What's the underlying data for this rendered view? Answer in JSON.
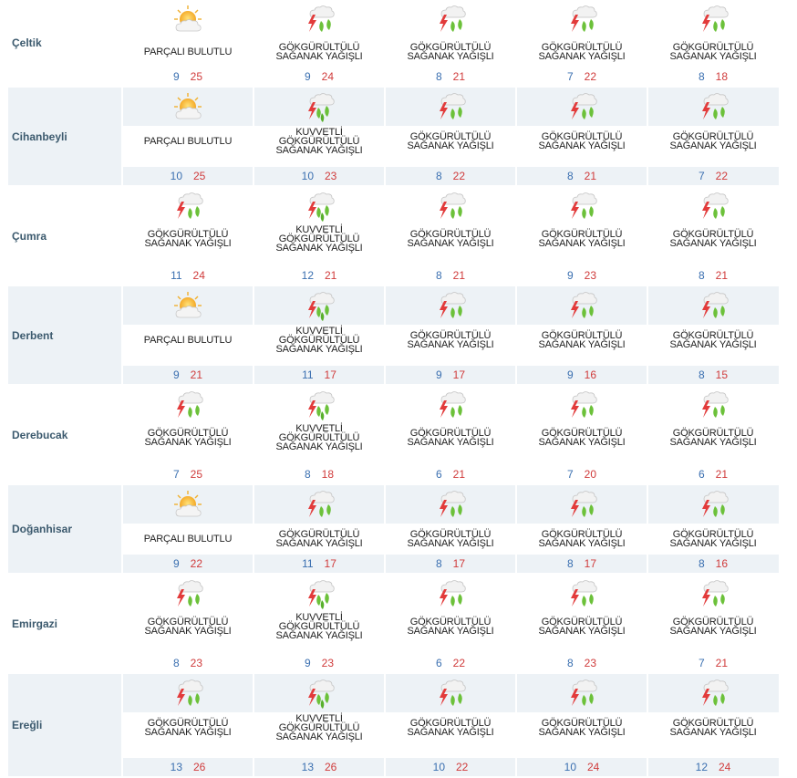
{
  "days_columns": 5,
  "colors": {
    "band": "#edf2f6",
    "city": "#3c5a6e",
    "min_temp": "#3a6fb0",
    "max_temp": "#d03b3b"
  },
  "rows": [
    {
      "city": "Çeltik",
      "banded": false,
      "cells": [
        {
          "icon": "partly-cloudy-icon",
          "desc": [
            "PARÇALI BULUTLU"
          ],
          "min": "9",
          "max": "25"
        },
        {
          "icon": "thunder-shower-icon",
          "desc": [
            "GÖKGÜRÜLTÜLÜ",
            "SAĞANAK YAĞIŞLI"
          ],
          "min": "9",
          "max": "24"
        },
        {
          "icon": "thunder-shower-icon",
          "desc": [
            "GÖKGÜRÜLTÜLÜ",
            "SAĞANAK YAĞIŞLI"
          ],
          "min": "8",
          "max": "21"
        },
        {
          "icon": "thunder-shower-icon",
          "desc": [
            "GÖKGÜRÜLTÜLÜ",
            "SAĞANAK YAĞIŞLI"
          ],
          "min": "7",
          "max": "22"
        },
        {
          "icon": "thunder-shower-icon",
          "desc": [
            "GÖKGÜRÜLTÜLÜ",
            "SAĞANAK YAĞIŞLI"
          ],
          "min": "8",
          "max": "18"
        }
      ]
    },
    {
      "city": "Cihanbeyli",
      "banded": true,
      "cells": [
        {
          "icon": "partly-cloudy-icon",
          "desc": [
            "PARÇALI BULUTLU"
          ],
          "min": "10",
          "max": "25"
        },
        {
          "icon": "heavy-thunder-shower-icon",
          "desc": [
            "KUVVETLİ",
            "GÖKGÜRÜLTÜLÜ",
            "SAĞANAK YAĞIŞLI"
          ],
          "min": "10",
          "max": "23"
        },
        {
          "icon": "thunder-shower-icon",
          "desc": [
            "GÖKGÜRÜLTÜLÜ",
            "SAĞANAK YAĞIŞLI"
          ],
          "min": "8",
          "max": "22"
        },
        {
          "icon": "thunder-shower-icon",
          "desc": [
            "GÖKGÜRÜLTÜLÜ",
            "SAĞANAK YAĞIŞLI"
          ],
          "min": "8",
          "max": "21"
        },
        {
          "icon": "thunder-shower-icon",
          "desc": [
            "GÖKGÜRÜLTÜLÜ",
            "SAĞANAK YAĞIŞLI"
          ],
          "min": "7",
          "max": "22"
        }
      ]
    },
    {
      "city": "Çumra",
      "banded": false,
      "cells": [
        {
          "icon": "thunder-shower-icon",
          "desc": [
            "GÖKGÜRÜLTÜLÜ",
            "SAĞANAK YAĞIŞLI"
          ],
          "min": "11",
          "max": "24"
        },
        {
          "icon": "heavy-thunder-shower-icon",
          "desc": [
            "KUVVETLİ",
            "GÖKGÜRÜLTÜLÜ",
            "SAĞANAK YAĞIŞLI"
          ],
          "min": "12",
          "max": "21"
        },
        {
          "icon": "thunder-shower-icon",
          "desc": [
            "GÖKGÜRÜLTÜLÜ",
            "SAĞANAK YAĞIŞLI"
          ],
          "min": "8",
          "max": "21"
        },
        {
          "icon": "thunder-shower-icon",
          "desc": [
            "GÖKGÜRÜLTÜLÜ",
            "SAĞANAK YAĞIŞLI"
          ],
          "min": "9",
          "max": "23"
        },
        {
          "icon": "thunder-shower-icon",
          "desc": [
            "GÖKGÜRÜLTÜLÜ",
            "SAĞANAK YAĞIŞLI"
          ],
          "min": "8",
          "max": "21"
        }
      ]
    },
    {
      "city": "Derbent",
      "banded": true,
      "cells": [
        {
          "icon": "partly-cloudy-icon",
          "desc": [
            "PARÇALI BULUTLU"
          ],
          "min": "9",
          "max": "21"
        },
        {
          "icon": "heavy-thunder-shower-icon",
          "desc": [
            "KUVVETLİ",
            "GÖKGÜRÜLTÜLÜ",
            "SAĞANAK YAĞIŞLI"
          ],
          "min": "11",
          "max": "17"
        },
        {
          "icon": "thunder-shower-icon",
          "desc": [
            "GÖKGÜRÜLTÜLÜ",
            "SAĞANAK YAĞIŞLI"
          ],
          "min": "9",
          "max": "17"
        },
        {
          "icon": "thunder-shower-icon",
          "desc": [
            "GÖKGÜRÜLTÜLÜ",
            "SAĞANAK YAĞIŞLI"
          ],
          "min": "9",
          "max": "16"
        },
        {
          "icon": "thunder-shower-icon",
          "desc": [
            "GÖKGÜRÜLTÜLÜ",
            "SAĞANAK YAĞIŞLI"
          ],
          "min": "8",
          "max": "15"
        }
      ]
    },
    {
      "city": "Derebucak",
      "banded": false,
      "cells": [
        {
          "icon": "thunder-shower-icon",
          "desc": [
            "GÖKGÜRÜLTÜLÜ",
            "SAĞANAK YAĞIŞLI"
          ],
          "min": "7",
          "max": "25"
        },
        {
          "icon": "heavy-thunder-shower-icon",
          "desc": [
            "KUVVETLİ",
            "GÖKGÜRÜLTÜLÜ",
            "SAĞANAK YAĞIŞLI"
          ],
          "min": "8",
          "max": "18"
        },
        {
          "icon": "thunder-shower-icon",
          "desc": [
            "GÖKGÜRÜLTÜLÜ",
            "SAĞANAK YAĞIŞLI"
          ],
          "min": "6",
          "max": "21"
        },
        {
          "icon": "thunder-shower-icon",
          "desc": [
            "GÖKGÜRÜLTÜLÜ",
            "SAĞANAK YAĞIŞLI"
          ],
          "min": "7",
          "max": "20"
        },
        {
          "icon": "thunder-shower-icon",
          "desc": [
            "GÖKGÜRÜLTÜLÜ",
            "SAĞANAK YAĞIŞLI"
          ],
          "min": "6",
          "max": "21"
        }
      ]
    },
    {
      "city": "Doğanhisar",
      "banded": true,
      "cells": [
        {
          "icon": "partly-cloudy-icon",
          "desc": [
            "PARÇALI BULUTLU"
          ],
          "min": "9",
          "max": "22"
        },
        {
          "icon": "thunder-shower-icon",
          "desc": [
            "GÖKGÜRÜLTÜLÜ",
            "SAĞANAK YAĞIŞLI"
          ],
          "min": "11",
          "max": "17"
        },
        {
          "icon": "thunder-shower-icon",
          "desc": [
            "GÖKGÜRÜLTÜLÜ",
            "SAĞANAK YAĞIŞLI"
          ],
          "min": "8",
          "max": "17"
        },
        {
          "icon": "thunder-shower-icon",
          "desc": [
            "GÖKGÜRÜLTÜLÜ",
            "SAĞANAK YAĞIŞLI"
          ],
          "min": "8",
          "max": "17"
        },
        {
          "icon": "thunder-shower-icon",
          "desc": [
            "GÖKGÜRÜLTÜLÜ",
            "SAĞANAK YAĞIŞLI"
          ],
          "min": "8",
          "max": "16"
        }
      ]
    },
    {
      "city": "Emirgazi",
      "banded": false,
      "cells": [
        {
          "icon": "thunder-shower-icon",
          "desc": [
            "GÖKGÜRÜLTÜLÜ",
            "SAĞANAK YAĞIŞLI"
          ],
          "min": "8",
          "max": "23"
        },
        {
          "icon": "heavy-thunder-shower-icon",
          "desc": [
            "KUVVETLİ",
            "GÖKGÜRÜLTÜLÜ",
            "SAĞANAK YAĞIŞLI"
          ],
          "min": "9",
          "max": "23"
        },
        {
          "icon": "thunder-shower-icon",
          "desc": [
            "GÖKGÜRÜLTÜLÜ",
            "SAĞANAK YAĞIŞLI"
          ],
          "min": "6",
          "max": "22"
        },
        {
          "icon": "thunder-shower-icon",
          "desc": [
            "GÖKGÜRÜLTÜLÜ",
            "SAĞANAK YAĞIŞLI"
          ],
          "min": "8",
          "max": "23"
        },
        {
          "icon": "thunder-shower-icon",
          "desc": [
            "GÖKGÜRÜLTÜLÜ",
            "SAĞANAK YAĞIŞLI"
          ],
          "min": "7",
          "max": "21"
        }
      ]
    },
    {
      "city": "Ereğli",
      "banded": true,
      "cells": [
        {
          "icon": "thunder-shower-icon",
          "desc": [
            "GÖKGÜRÜLTÜLÜ",
            "SAĞANAK YAĞIŞLI"
          ],
          "min": "13",
          "max": "26"
        },
        {
          "icon": "heavy-thunder-shower-icon",
          "desc": [
            "KUVVETLİ",
            "GÖKGÜRÜLTÜLÜ",
            "SAĞANAK YAĞIŞLI"
          ],
          "min": "13",
          "max": "26"
        },
        {
          "icon": "thunder-shower-icon",
          "desc": [
            "GÖKGÜRÜLTÜLÜ",
            "SAĞANAK YAĞIŞLI"
          ],
          "min": "10",
          "max": "22"
        },
        {
          "icon": "thunder-shower-icon",
          "desc": [
            "GÖKGÜRÜLTÜLÜ",
            "SAĞANAK YAĞIŞLI"
          ],
          "min": "10",
          "max": "24"
        },
        {
          "icon": "thunder-shower-icon",
          "desc": [
            "GÖKGÜRÜLTÜLÜ",
            "SAĞANAK YAĞIŞLI"
          ],
          "min": "12",
          "max": "24"
        }
      ]
    }
  ]
}
